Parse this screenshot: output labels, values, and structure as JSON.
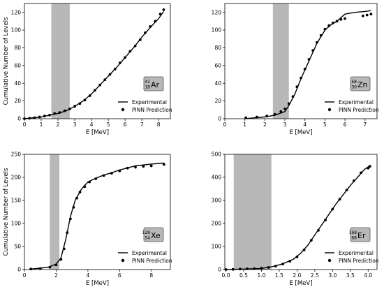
{
  "chart_data": [
    {
      "type": "line",
      "panel": "top-left",
      "isotope": {
        "mass": "41",
        "atomic": "18",
        "symbol": "Ar"
      },
      "xlabel": "E [MeV]",
      "ylabel": "Cumulative Number of Levels",
      "xlim": [
        0,
        8.7
      ],
      "ylim": [
        0,
        130
      ],
      "xticks": [
        0,
        1,
        2,
        3,
        4,
        5,
        6,
        7,
        8
      ],
      "yticks": [
        0,
        20,
        40,
        60,
        80,
        100,
        120
      ],
      "shaded_band": [
        1.6,
        2.7
      ],
      "legend": {
        "position": "right",
        "entries": [
          "Experimental",
          "PINN Prediction"
        ]
      },
      "series": [
        {
          "name": "Experimental",
          "style": "line",
          "x": [
            0,
            0.5,
            1.0,
            1.5,
            2.0,
            2.5,
            3.0,
            3.5,
            4.0,
            4.5,
            5.0,
            5.5,
            6.0,
            6.5,
            7.0,
            7.5,
            8.0,
            8.3
          ],
          "y": [
            0,
            1,
            2,
            4,
            6,
            9,
            14,
            20,
            28,
            38,
            48,
            58,
            69,
            80,
            92,
            103,
            113,
            121
          ]
        },
        {
          "name": "PINN Prediction",
          "style": "points",
          "x": [
            0,
            0.3,
            0.6,
            0.9,
            1.2,
            1.5,
            1.8,
            2.1,
            2.4,
            2.7,
            3.0,
            3.3,
            3.6,
            3.9,
            4.2,
            4.5,
            4.8,
            5.1,
            5.4,
            5.7,
            6.0,
            6.3,
            6.6,
            6.9,
            7.2,
            7.5,
            7.8,
            8.1,
            8.3
          ],
          "y": [
            0,
            0.5,
            1,
            2,
            3,
            4,
            6,
            7,
            9,
            11,
            14,
            17,
            21,
            26,
            32,
            38,
            44,
            50,
            56,
            63,
            69,
            76,
            82,
            89,
            97,
            104,
            110,
            118,
            123
          ]
        }
      ]
    },
    {
      "type": "line",
      "panel": "top-right",
      "isotope": {
        "mass": "68",
        "atomic": "30",
        "symbol": "Zn"
      },
      "xlabel": "E [MeV]",
      "ylabel": "",
      "xlim": [
        0,
        7.6
      ],
      "ylim": [
        0,
        130
      ],
      "xticks": [
        0,
        1,
        2,
        3,
        4,
        5,
        6,
        7
      ],
      "yticks": [
        0,
        20,
        40,
        60,
        80,
        100,
        120
      ],
      "shaded_band": [
        2.4,
        3.2
      ],
      "legend": {
        "position": "right",
        "entries": [
          "Experimental",
          "PINN Prediction"
        ]
      },
      "series": [
        {
          "name": "Experimental",
          "style": "line",
          "x": [
            1.0,
            1.5,
            2.0,
            2.5,
            3.0,
            3.2,
            3.5,
            3.8,
            4.0,
            4.3,
            4.6,
            5.0,
            5.3,
            5.6,
            6.0,
            6.5,
            7.0,
            7.3
          ],
          "y": [
            0,
            1,
            2,
            4,
            8,
            15,
            28,
            45,
            55,
            70,
            85,
            100,
            106,
            110,
            118,
            120,
            121,
            122
          ]
        },
        {
          "name": "PINN Prediction",
          "style": "points",
          "x": [
            1.05,
            1.6,
            2.1,
            2.5,
            2.8,
            3.0,
            3.2,
            3.4,
            3.6,
            3.8,
            4.0,
            4.2,
            4.4,
            4.6,
            4.8,
            5.0,
            5.2,
            5.4,
            5.6,
            5.8,
            6.0,
            6.9,
            7.1,
            7.3
          ],
          "y": [
            1,
            2,
            3,
            5,
            8,
            11,
            17,
            25,
            36,
            46,
            56,
            67,
            77,
            86,
            94,
            101,
            105,
            108,
            110,
            112,
            113,
            116,
            117,
            118
          ]
        }
      ]
    },
    {
      "type": "line",
      "panel": "bottom-left",
      "isotope": {
        "mass": "128",
        "atomic": "54",
        "symbol": "Xe"
      },
      "xlabel": "E [MeV]",
      "ylabel": "Cumulative Number of Levels",
      "xlim": [
        0,
        9.2
      ],
      "ylim": [
        0,
        250
      ],
      "xticks": [
        0,
        2,
        4,
        6,
        8
      ],
      "yticks": [
        0,
        50,
        100,
        150,
        200,
        250
      ],
      "shaded_band": [
        1.6,
        2.2
      ],
      "legend": {
        "position": "right",
        "entries": [
          "Experimental",
          "PINN Prediction"
        ]
      },
      "series": [
        {
          "name": "Experimental",
          "style": "line",
          "x": [
            0.4,
            1.0,
            1.5,
            2.0,
            2.3,
            2.6,
            2.9,
            3.2,
            3.6,
            4.0,
            4.5,
            5.0,
            5.5,
            6.0,
            7.0,
            8.0,
            8.8
          ],
          "y": [
            1,
            3,
            5,
            12,
            25,
            65,
            115,
            150,
            175,
            190,
            198,
            205,
            210,
            216,
            225,
            229,
            231
          ]
        },
        {
          "name": "PINN Prediction",
          "style": "points",
          "x": [
            0.4,
            1.0,
            1.6,
            2.0,
            2.3,
            2.5,
            2.7,
            2.9,
            3.1,
            3.3,
            3.5,
            3.8,
            4.1,
            4.5,
            5.0,
            5.5,
            6.0,
            6.5,
            7.0,
            7.5,
            8.0,
            8.8
          ],
          "y": [
            1,
            2,
            5,
            10,
            22,
            45,
            80,
            110,
            135,
            155,
            168,
            180,
            190,
            197,
            204,
            209,
            214,
            220,
            222,
            224,
            225,
            228
          ]
        }
      ]
    },
    {
      "type": "line",
      "panel": "bottom-right",
      "isotope": {
        "mass": "168",
        "atomic": "68",
        "symbol": "Er"
      },
      "xlabel": "E [MeV]",
      "ylabel": "",
      "xlim": [
        -0.03,
        4.25
      ],
      "ylim": [
        0,
        500
      ],
      "xticks": [
        0.0,
        0.5,
        1.0,
        1.5,
        2.0,
        2.5,
        3.0,
        3.5,
        4.0
      ],
      "yticks": [
        0,
        100,
        200,
        300,
        400,
        500
      ],
      "shaded_band": [
        0.22,
        1.28
      ],
      "legend": {
        "position": "right",
        "entries": [
          "Experimental",
          "PINN Prediction"
        ]
      },
      "series": [
        {
          "name": "Experimental",
          "style": "line",
          "x": [
            0.0,
            0.5,
            1.0,
            1.3,
            1.6,
            1.9,
            2.1,
            2.3,
            2.5,
            2.7,
            2.9,
            3.1,
            3.3,
            3.5,
            3.7,
            3.9,
            4.05
          ],
          "y": [
            0,
            2,
            5,
            12,
            25,
            45,
            70,
            105,
            150,
            195,
            240,
            285,
            325,
            365,
            400,
            435,
            450
          ]
        },
        {
          "name": "PINN Prediction",
          "style": "points",
          "x": [
            0.0,
            0.2,
            0.4,
            0.6,
            0.8,
            1.0,
            1.2,
            1.4,
            1.6,
            1.8,
            2.0,
            2.2,
            2.4,
            2.6,
            2.8,
            3.0,
            3.2,
            3.4,
            3.6,
            3.8,
            4.0,
            4.05
          ],
          "y": [
            0,
            1,
            2,
            3,
            4,
            6,
            9,
            15,
            24,
            36,
            55,
            85,
            127,
            170,
            215,
            262,
            305,
            345,
            385,
            420,
            440,
            448
          ]
        }
      ]
    }
  ]
}
